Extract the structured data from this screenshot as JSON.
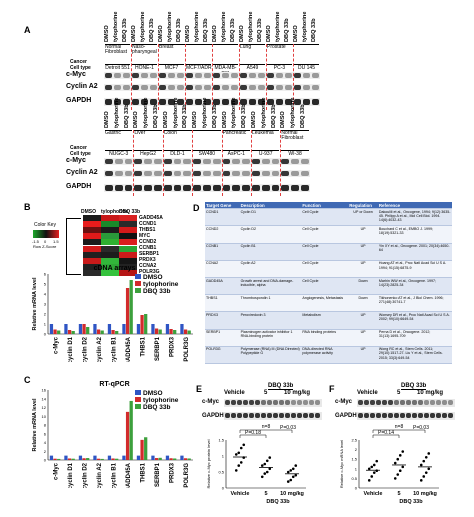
{
  "panels": {
    "a": "A",
    "b": "B",
    "c": "C",
    "d": "D",
    "e": "E",
    "f": "F"
  },
  "panel_a": {
    "lane_treatments": [
      "DMSO",
      "tylophorine",
      "DBQ 33b"
    ],
    "row_labels": {
      "cancer": "Cancer",
      "cell_type": "Cell type",
      "cmyc": "c-Myc",
      "cyclin_a2": "Cyclin A2",
      "gapdh": "GAPDH"
    },
    "top_groups": [
      {
        "cancer": "Normal Fibroblast",
        "cells": [
          "Detroit 551"
        ]
      },
      {
        "cancer": "Naso-pharyngeal",
        "cells": [
          "HONE-1"
        ]
      },
      {
        "cancer": "Breast",
        "cells": [
          "MCF7",
          "MCF7/ADR",
          "MDA-MB-231"
        ]
      },
      {
        "cancer": "Lung",
        "cells": [
          "A549"
        ]
      },
      {
        "cancer": "Prostate",
        "cells": [
          "PC-3",
          "DU 145"
        ]
      }
    ],
    "bottom_groups": [
      {
        "cancer": "Gastric",
        "cells": [
          "NUGC-3"
        ]
      },
      {
        "cancer": "Liver",
        "cells": [
          "HepG2"
        ]
      },
      {
        "cancer": "Colon",
        "cells": [
          "DLD-1",
          "SW480"
        ]
      },
      {
        "cancer": "Pancreatic",
        "cells": [
          "AsPC-1"
        ]
      },
      {
        "cancer": "Leukemia",
        "cells": [
          "U-937"
        ]
      },
      {
        "cancer": "Normal Fibroblast",
        "cells": [
          "WI-38"
        ]
      }
    ]
  },
  "panel_b": {
    "color_key_title": "Color Key",
    "color_key_ticks": [
      "-1.5",
      "0",
      "1.5"
    ],
    "color_key_label": "Row Z-Score",
    "columns": [
      "DMSO",
      "tylophorine",
      "DBQ 33b"
    ],
    "genes": [
      "GADD45A",
      "CCND1",
      "THBS1",
      "MYC",
      "CCND2",
      "CCNB1",
      "SERBP1",
      "PRDX3",
      "CCNA2",
      "POLR3G"
    ],
    "cells": [
      [
        "#1a1a1a",
        "#c81818",
        "#d82020"
      ],
      [
        "#e81c1c",
        "#1a8a2a",
        "#2a2a2a"
      ],
      [
        "#6a1010",
        "#1c1c1c",
        "#d41a1a"
      ],
      [
        "#e01a1a",
        "#2a9a3a",
        "#121212"
      ],
      [
        "#1c1c1c",
        "#2fb030",
        "#db1e1e"
      ],
      [
        "#d11a1a",
        "#2a2a2a",
        "#2aa534"
      ],
      [
        "#202020",
        "#1c1c1c",
        "#cc1a1a"
      ],
      [
        "#c81a1a",
        "#32b73a",
        "#151515"
      ],
      [
        "#202020",
        "#2ea836",
        "#222222"
      ],
      [
        "#2a2a2a",
        "#35c23d",
        "#b51515"
      ]
    ],
    "bar_title": "cDNA arrays",
    "legend": [
      "DMSO",
      "tylophorine",
      "DBQ 33b"
    ],
    "ylabel": "Relative mRNA level"
  },
  "chart_data": [
    {
      "type": "bar",
      "title": "cDNA arrays",
      "ylabel": "Relative mRNA level",
      "categories": [
        "c-Myc",
        "cyclin D1",
        "cyclin D2",
        "cyclin A2",
        "cyclin B1",
        "GADD45A",
        "THBS1",
        "SERBP1",
        "PRDX3",
        "POLR3G"
      ],
      "series": [
        {
          "name": "DMSO",
          "values": [
            1,
            1,
            1,
            1,
            1,
            1,
            1,
            1,
            1,
            1
          ]
        },
        {
          "name": "tylophorine",
          "values": [
            0.45,
            0.4,
            1.0,
            0.45,
            0.4,
            4.6,
            1.9,
            0.55,
            0.5,
            0.45
          ]
        },
        {
          "name": "DBQ 33b",
          "values": [
            0.35,
            0.3,
            0.7,
            0.35,
            0.3,
            5.4,
            2.0,
            0.45,
            0.4,
            0.35
          ]
        }
      ],
      "ylim": [
        0,
        6
      ]
    },
    {
      "type": "bar",
      "title": "RT-qPCR",
      "ylabel": "Relative mRNA level",
      "categories": [
        "c-Myc",
        "cyclin D1",
        "cyclin D2",
        "cyclin A2",
        "cyclin B1",
        "GADD45A",
        "THBS1",
        "SERBP1",
        "PRDX3",
        "POLR3G"
      ],
      "series": [
        {
          "name": "DMSO",
          "values": [
            1,
            1,
            1,
            1,
            1,
            1,
            1,
            1,
            1,
            1
          ]
        },
        {
          "name": "tylophorine",
          "values": [
            0.3,
            0.35,
            0.4,
            0.3,
            0.35,
            11.0,
            4.6,
            0.45,
            0.4,
            0.4
          ]
        },
        {
          "name": "DBQ 33b",
          "values": [
            0.25,
            0.3,
            0.45,
            0.25,
            0.3,
            13.5,
            5.2,
            0.5,
            0.35,
            0.35
          ]
        }
      ],
      "ylim": [
        0,
        16
      ]
    }
  ],
  "panel_c": {
    "bar_title": "RT-qPCR",
    "legend": [
      "DMSO",
      "tylophorine",
      "DBQ 33b"
    ],
    "ylabel": "Relative mRNA level"
  },
  "table_d": {
    "headers": [
      "Target Gene",
      "Description",
      "Function",
      "Regulation",
      "Reference"
    ],
    "rows": [
      [
        "CCND1",
        "Cyclin D1",
        "Cell Cycle",
        "UP or Down",
        "Dakoulili et al., Oncogene, 1994; 9(12):3635-45. Philipp A et al., Mol Cell Biol. 1994. 14(6):4032-43"
      ],
      [
        "CCND2",
        "Cyclin D2",
        "Cell Cycle",
        "UP",
        "Bouchard C et al., EMBO J. 1999; 18(19):5321-33"
      ],
      [
        "CCNB1",
        "Cyclin B1",
        "Cell Cycle",
        "UP",
        "Yin XY et al., Oncogene. 2001; 20(34):4650-64"
      ],
      [
        "CCNA2",
        "Cyclin A2",
        "Cell Cycle",
        "UP",
        "Hoang AT et al., Proc Natl Acad Sci U S A. 1994; 91(15):6875-9"
      ],
      [
        "GADD45A",
        "Growth arrest and DNA-damage-inducible, alpha",
        "Cell Cycle",
        "Down",
        "Marhin WW et al., Oncogene. 1997; 14(23):2825-34"
      ],
      [
        "THBS1",
        "Thrombospondin 1",
        "Angiogenesis, Metastasis",
        "Down",
        "Tikhonenko AT et al., J Biol Chem. 1996; 271(48):30741-7"
      ],
      [
        "PRDX3",
        "Peroxiredoxin 3",
        "Metabolism",
        "UP",
        "Wonsey DR et al., Proc Natl Acad Sci U S A. 2002; 99(10):6649-54"
      ],
      [
        "SERBP1",
        "Plasminogen activator inhibitor 1 RNA-binding protein",
        "RNA binding proteins",
        "UP",
        "Perna D et al., Oncogene. 2012; 31(13):1695-709"
      ],
      [
        "POLR3G",
        "Polymerase (RNA) III (DNA Directed) Polypeptide G",
        "DNA-directed RNA polymerase activity",
        "UP",
        "Wong RC et al., Stem Cells. 2011; 29(10):1517-27. Liu Y et al., Stem Cells. 2015; 33(3):649-54"
      ]
    ]
  },
  "panel_e": {
    "vehicle": "Vehicle",
    "drug": "DBQ 33b",
    "doses": [
      "5",
      "10 mg/kg"
    ],
    "cmyc": "c-Myc",
    "gapdh": "GAPDH",
    "p1": "P=0.18",
    "p2": "P=0.03",
    "n": "n=8",
    "ylabel": "Relative c-Myc protein level",
    "xcats": [
      "Vehicle",
      "5",
      "10 mg/kg"
    ],
    "xdrug": "DBQ 33b"
  },
  "panel_f": {
    "vehicle": "Vehicle",
    "drug": "DBQ 33b",
    "doses": [
      "5",
      "10 mg/kg"
    ],
    "cmyc": "c-Myc",
    "gapdh": "GAPDH",
    "p1": "P=0.14",
    "p2": "P=0.03",
    "n": "n=8",
    "ylabel": "Relative c-Myc mRNA level",
    "xcats": [
      "Vehicle",
      "5",
      "10 mg/kg"
    ],
    "xdrug": "DBQ 33b"
  },
  "scatter_e": {
    "groups": [
      [
        0.55,
        0.7,
        0.8,
        0.95,
        1.05,
        1.1,
        1.25,
        1.35
      ],
      [
        0.35,
        0.45,
        0.5,
        0.6,
        0.7,
        0.75,
        0.85,
        0.95
      ],
      [
        0.2,
        0.25,
        0.35,
        0.4,
        0.5,
        0.55,
        0.6,
        0.7
      ]
    ],
    "ylim": [
      0,
      1.5
    ],
    "yticks": [
      "0",
      "0.5",
      "1",
      "1.5"
    ]
  },
  "scatter_f": {
    "groups": [
      [
        0.4,
        0.6,
        0.8,
        0.9,
        1.0,
        1.1,
        1.2,
        1.4
      ],
      [
        0.5,
        0.7,
        0.9,
        1.1,
        1.3,
        1.5,
        1.7,
        1.9
      ],
      [
        0.4,
        0.6,
        0.8,
        1.0,
        1.2,
        1.4,
        1.6,
        1.8
      ]
    ],
    "ylim": [
      0,
      2.5
    ],
    "yticks": [
      "0",
      "0.5",
      "1",
      "1.5",
      "2",
      "2.5"
    ]
  }
}
